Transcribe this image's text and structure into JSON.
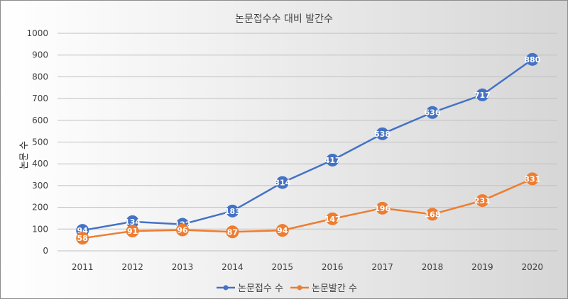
{
  "chart_data": {
    "type": "line",
    "title": "논문접수수 대비 발간수",
    "xlabel": "",
    "ylabel": "논문 수",
    "categories": [
      "2011",
      "2012",
      "2013",
      "2014",
      "2015",
      "2016",
      "2017",
      "2018",
      "2019",
      "2020"
    ],
    "ylim": [
      0,
      1000
    ],
    "yticks": [
      0,
      100,
      200,
      300,
      400,
      500,
      600,
      700,
      800,
      900,
      1000
    ],
    "grid": true,
    "legend_position": "bottom",
    "series": [
      {
        "name": "논문접수 수",
        "color": "#4472c4",
        "values": [
          94,
          134,
          122,
          183,
          314,
          417,
          538,
          636,
          717,
          880
        ]
      },
      {
        "name": "논문발간 수",
        "color": "#ed7d31",
        "values": [
          58,
          91,
          96,
          87,
          94,
          147,
          196,
          168,
          231,
          331
        ]
      }
    ]
  }
}
